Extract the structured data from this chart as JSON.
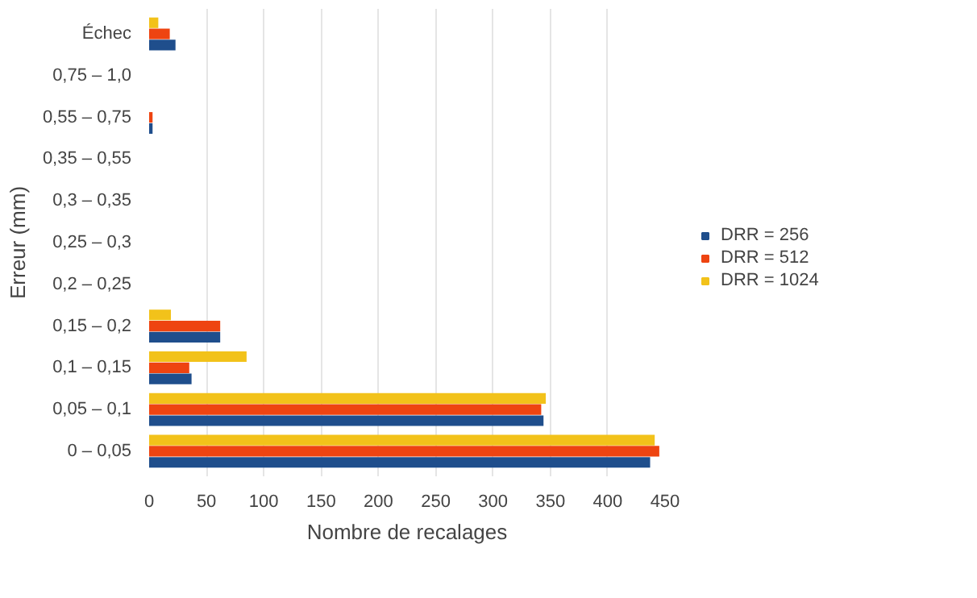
{
  "chart_data": {
    "type": "bar",
    "orientation": "horizontal",
    "xlabel": "Nombre de recalages",
    "ylabel": "Erreur (mm)",
    "categories": [
      "Échec",
      "0,75 – 1,0",
      "0,55 – 0,75",
      "0,35 – 0,55",
      "0,3 – 0,35",
      "0,25 – 0,3",
      "0,2 – 0,25",
      "0,15 – 0,2",
      "0,1 – 0,15",
      "0,05 – 0,1",
      "0 – 0,05"
    ],
    "series": [
      {
        "name": "DRR = 256",
        "color": "#1f4e8c",
        "values": [
          23,
          0,
          3,
          0,
          0,
          0,
          0,
          62,
          37,
          344,
          437
        ]
      },
      {
        "name": "DRR = 512",
        "color": "#ee4411",
        "values": [
          18,
          0,
          3,
          0,
          0,
          0,
          0,
          62,
          35,
          342,
          445
        ]
      },
      {
        "name": "DRR = 1024",
        "color": "#f2c21a",
        "values": [
          8,
          0,
          0,
          0,
          0,
          0,
          0,
          19,
          85,
          346,
          441
        ]
      }
    ],
    "xlim": [
      0,
      450
    ],
    "xticks": [
      0,
      50,
      100,
      150,
      200,
      250,
      300,
      350,
      400,
      450
    ],
    "grid": "x",
    "legend": "right"
  }
}
